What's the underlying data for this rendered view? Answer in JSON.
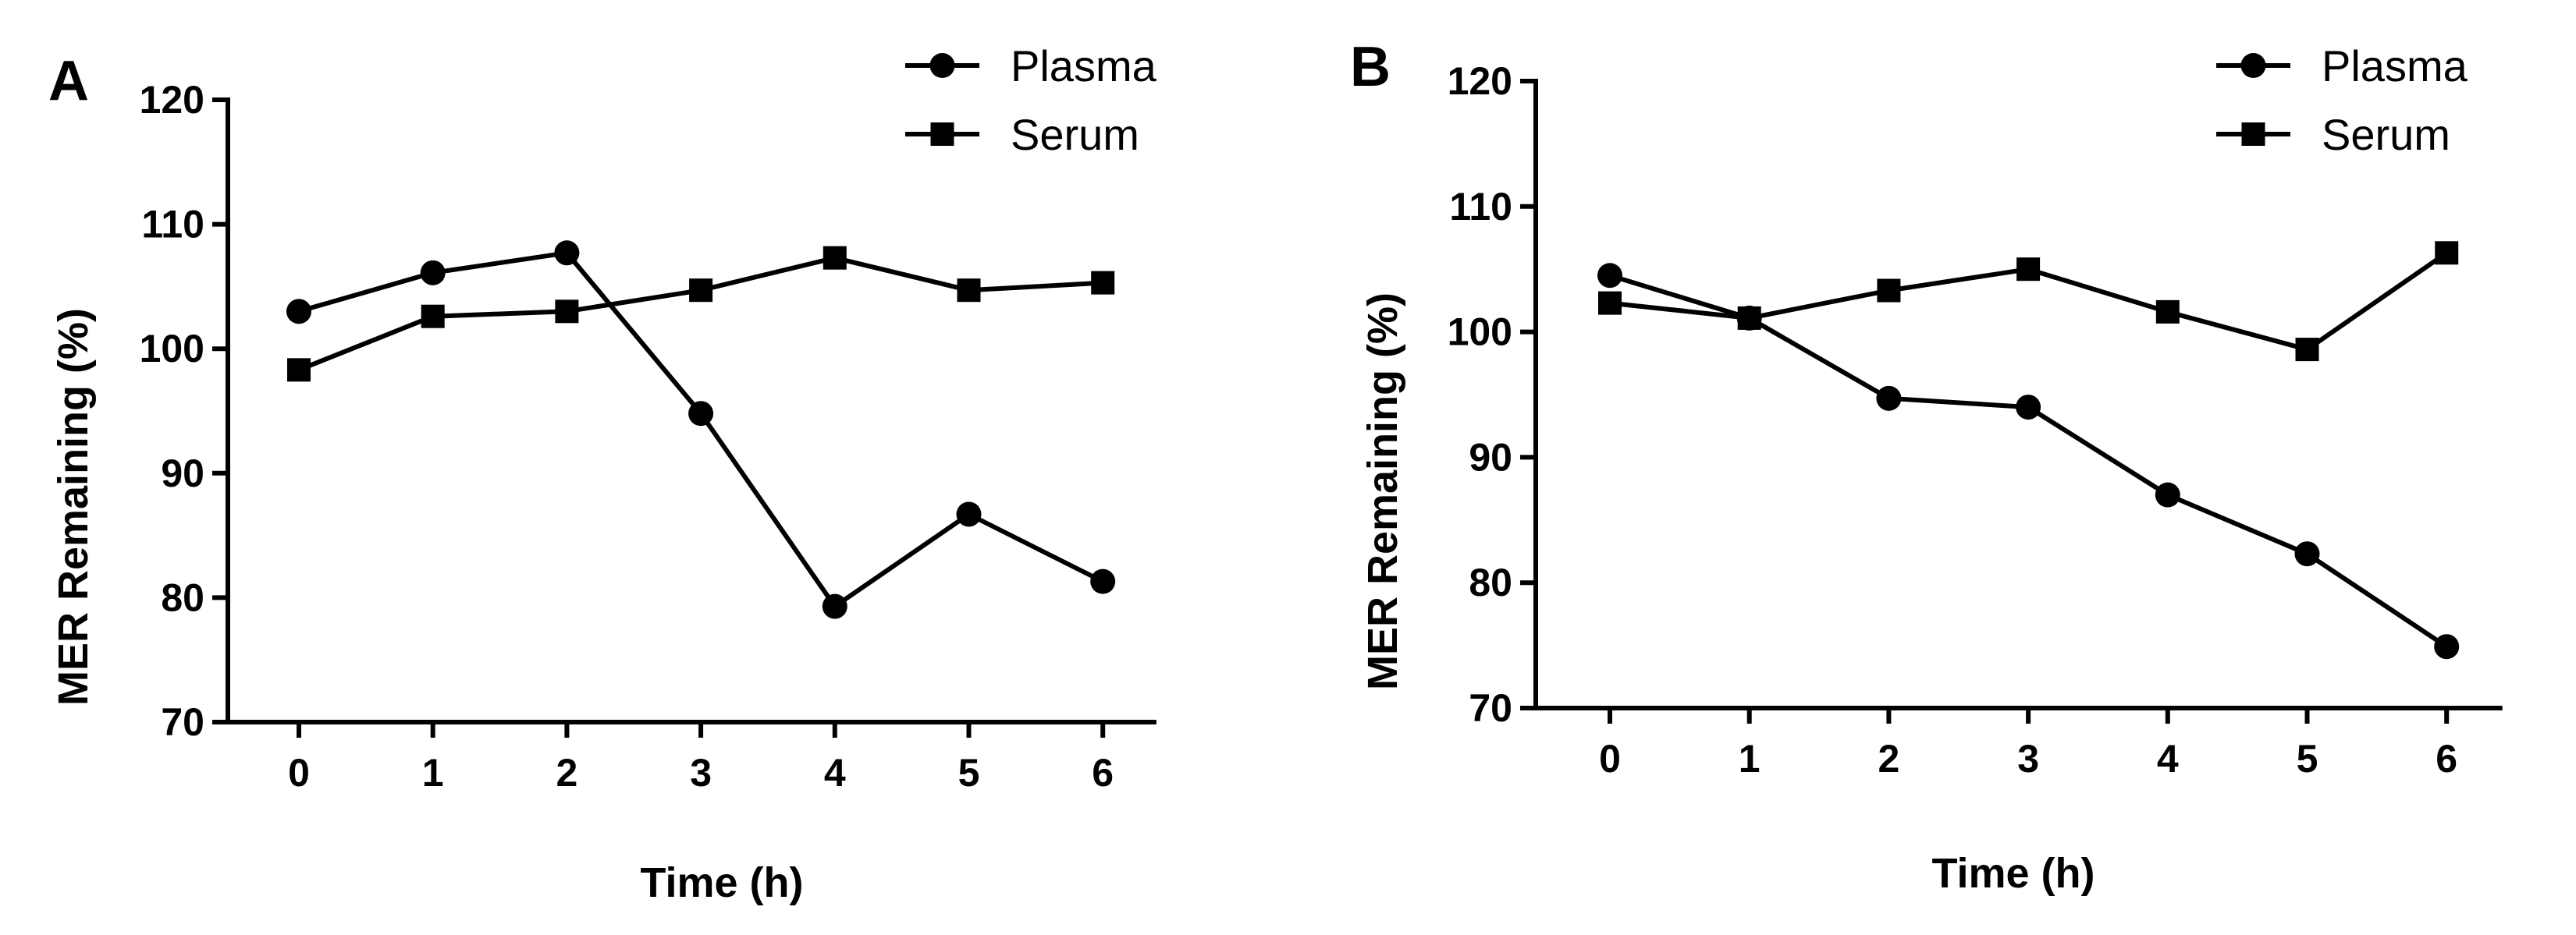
{
  "chart_data": [
    {
      "type": "line",
      "panel_label": "A",
      "xlabel": "Time (h)",
      "ylabel": "MER Remaining (%)",
      "xlim": [
        -0.4,
        6.4
      ],
      "ylim": [
        70,
        120
      ],
      "x_ticks": [
        0,
        1,
        2,
        3,
        4,
        5,
        6
      ],
      "y_ticks": [
        70,
        80,
        90,
        100,
        110,
        120
      ],
      "grid": false,
      "legend_position": "top-right",
      "x": [
        0,
        1,
        2,
        3,
        4,
        5,
        6
      ],
      "series": [
        {
          "name": "Plasma",
          "marker": "circle",
          "values": [
            103.0,
            106.1,
            107.7,
            94.8,
            79.3,
            86.7,
            81.3
          ]
        },
        {
          "name": "Serum",
          "marker": "square",
          "values": [
            98.3,
            102.6,
            103.0,
            104.7,
            107.3,
            104.7,
            105.3
          ]
        }
      ]
    },
    {
      "type": "line",
      "panel_label": "B",
      "xlabel": "Time (h)",
      "ylabel": "MER Remaining (%)",
      "xlim": [
        -0.4,
        6.4
      ],
      "ylim": [
        70,
        120
      ],
      "x_ticks": [
        0,
        1,
        2,
        3,
        4,
        5,
        6
      ],
      "y_ticks": [
        70,
        80,
        90,
        100,
        110,
        120
      ],
      "grid": false,
      "legend_position": "top-right",
      "x": [
        0,
        1,
        2,
        3,
        4,
        5,
        6
      ],
      "series": [
        {
          "name": "Plasma",
          "marker": "circle",
          "values": [
            104.5,
            101.1,
            94.7,
            94.0,
            87.0,
            82.3,
            74.9
          ]
        },
        {
          "name": "Serum",
          "marker": "square",
          "values": [
            102.3,
            101.1,
            103.3,
            105.0,
            101.6,
            98.6,
            106.3
          ]
        }
      ]
    }
  ]
}
